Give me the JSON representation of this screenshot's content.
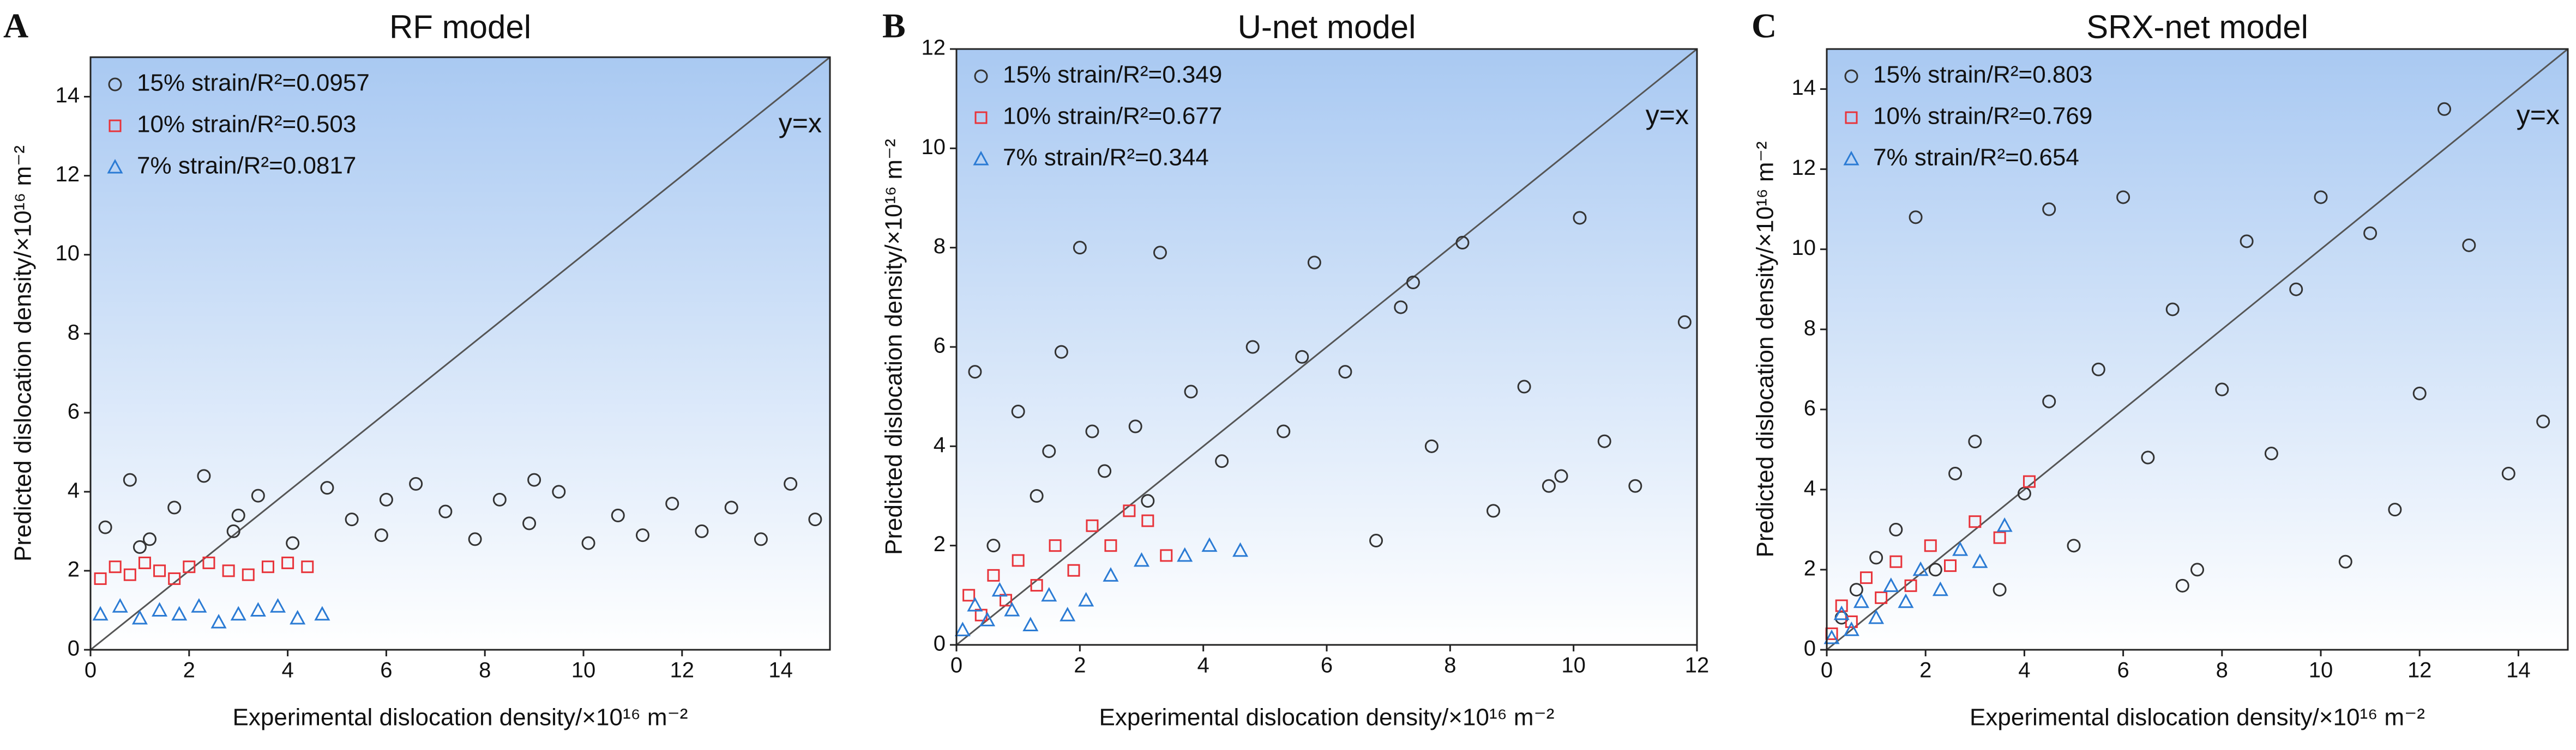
{
  "chart_data": [
    {
      "type": "scatter",
      "panel_label": "A",
      "title": "RF model",
      "x_label": "Experimental dislocation density/×10¹⁶ m⁻²",
      "y_label": "Predicted dislocation density/×10¹⁶ m⁻²",
      "annotation": "y=x",
      "legend": "upper left",
      "xlim": [
        0,
        15
      ],
      "ylim": [
        0,
        15
      ],
      "xticks": [
        0,
        2,
        4,
        6,
        8,
        10,
        12,
        14
      ],
      "yticks": [
        0,
        2,
        4,
        6,
        8,
        10,
        12,
        14
      ],
      "series": [
        {
          "name": "15% strain/R²=0.0957",
          "color": "#333333",
          "marker": "circle",
          "x": [
            0.3,
            0.8,
            1.2,
            1.7,
            2.3,
            2.9,
            3.4,
            4.1,
            4.8,
            5.3,
            5.9,
            6.6,
            7.2,
            7.8,
            8.3,
            8.9,
            9.5,
            10.1,
            10.7,
            11.2,
            11.8,
            12.4,
            13.0,
            13.6,
            14.2,
            14.7,
            1.0,
            3.0,
            6.0,
            9.0
          ],
          "y": [
            3.1,
            4.3,
            2.8,
            3.6,
            4.4,
            3.0,
            3.9,
            2.7,
            4.1,
            3.3,
            2.9,
            4.2,
            3.5,
            2.8,
            3.8,
            3.2,
            4.0,
            2.7,
            3.4,
            2.9,
            3.7,
            3.0,
            3.6,
            2.8,
            4.2,
            3.3,
            2.6,
            3.4,
            3.8,
            4.3
          ]
        },
        {
          "name": "10% strain/R²=0.503",
          "color": "#e8333a",
          "marker": "square",
          "x": [
            0.2,
            0.5,
            0.8,
            1.1,
            1.4,
            1.7,
            2.0,
            2.4,
            2.8,
            3.2,
            3.6,
            4.0,
            4.4
          ],
          "y": [
            1.8,
            2.1,
            1.9,
            2.2,
            2.0,
            1.8,
            2.1,
            2.2,
            2.0,
            1.9,
            2.1,
            2.2,
            2.1
          ]
        },
        {
          "name": "7% strain/R²=0.0817",
          "color": "#2b7bd4",
          "marker": "triangle",
          "x": [
            0.2,
            0.6,
            1.0,
            1.4,
            1.8,
            2.2,
            2.6,
            3.0,
            3.4,
            3.8,
            4.2,
            4.7
          ],
          "y": [
            0.9,
            1.1,
            0.8,
            1.0,
            0.9,
            1.1,
            0.7,
            0.9,
            1.0,
            1.1,
            0.8,
            0.9
          ]
        }
      ]
    },
    {
      "type": "scatter",
      "panel_label": "B",
      "title": "U-net model",
      "x_label": "Experimental dislocation density/×10¹⁶ m⁻²",
      "y_label": "Predicted dislocation density/×10¹⁶ m⁻²",
      "annotation": "y=x",
      "legend": "upper left",
      "xlim": [
        0,
        12
      ],
      "ylim": [
        0,
        12
      ],
      "xticks": [
        0,
        2,
        4,
        6,
        8,
        10,
        12
      ],
      "yticks": [
        0,
        2,
        4,
        6,
        8,
        10,
        12
      ],
      "series": [
        {
          "name": "15% strain/R²=0.349",
          "color": "#333333",
          "marker": "circle",
          "x": [
            0.3,
            0.6,
            1.0,
            1.3,
            1.7,
            2.0,
            2.4,
            2.9,
            3.3,
            3.8,
            4.3,
            4.8,
            5.3,
            5.8,
            6.3,
            6.8,
            7.2,
            7.7,
            8.2,
            8.7,
            9.2,
            9.6,
            10.1,
            10.5,
            11.0,
            11.8,
            1.5,
            3.1,
            5.6,
            7.4,
            9.8,
            2.2
          ],
          "y": [
            5.5,
            2.0,
            4.7,
            3.0,
            5.9,
            8.0,
            3.5,
            4.4,
            7.9,
            5.1,
            3.7,
            6.0,
            4.3,
            7.7,
            5.5,
            2.1,
            6.8,
            4.0,
            8.1,
            2.7,
            5.2,
            3.2,
            8.6,
            4.1,
            3.2,
            6.5,
            3.9,
            2.9,
            5.8,
            7.3,
            3.4,
            4.3
          ]
        },
        {
          "name": "10% strain/R²=0.677",
          "color": "#e8333a",
          "marker": "square",
          "x": [
            0.2,
            0.4,
            0.6,
            0.8,
            1.0,
            1.3,
            1.6,
            1.9,
            2.2,
            2.5,
            2.8,
            3.1,
            3.4
          ],
          "y": [
            1.0,
            0.6,
            1.4,
            0.9,
            1.7,
            1.2,
            2.0,
            1.5,
            2.4,
            2.0,
            2.7,
            2.5,
            1.8
          ]
        },
        {
          "name": "7% strain/R²=0.344",
          "color": "#2b7bd4",
          "marker": "triangle",
          "x": [
            0.1,
            0.3,
            0.5,
            0.7,
            0.9,
            1.2,
            1.5,
            1.8,
            2.1,
            2.5,
            3.0,
            3.7,
            4.1,
            4.6
          ],
          "y": [
            0.3,
            0.8,
            0.5,
            1.1,
            0.7,
            0.4,
            1.0,
            0.6,
            0.9,
            1.4,
            1.7,
            1.8,
            2.0,
            1.9
          ]
        }
      ]
    },
    {
      "type": "scatter",
      "panel_label": "C",
      "title": "SRX-net model",
      "x_label": "Experimental dislocation density/×10¹⁶ m⁻²",
      "y_label": "Predicted dislocation density/×10¹⁶ m⁻²",
      "annotation": "y=x",
      "legend": "upper left",
      "xlim": [
        0,
        15
      ],
      "ylim": [
        0,
        15
      ],
      "xticks": [
        0,
        2,
        4,
        6,
        8,
        10,
        12,
        14
      ],
      "yticks": [
        0,
        2,
        4,
        6,
        8,
        10,
        12,
        14
      ],
      "series": [
        {
          "name": "15% strain/R²=0.803",
          "color": "#333333",
          "marker": "circle",
          "x": [
            0.3,
            0.6,
            1.0,
            1.4,
            1.8,
            2.2,
            2.6,
            3.0,
            3.5,
            4.0,
            4.5,
            5.0,
            5.5,
            6.0,
            6.5,
            7.0,
            7.5,
            8.0,
            8.5,
            9.0,
            9.5,
            10.0,
            10.5,
            11.0,
            11.5,
            12.0,
            12.5,
            13.0,
            13.8,
            14.5,
            4.5,
            7.2
          ],
          "y": [
            0.8,
            1.5,
            2.3,
            3.0,
            10.8,
            2.0,
            4.4,
            5.2,
            1.5,
            3.9,
            6.2,
            2.6,
            7.0,
            11.3,
            4.8,
            8.5,
            2.0,
            6.5,
            10.2,
            4.9,
            9.0,
            11.3,
            2.2,
            10.4,
            3.5,
            6.4,
            13.5,
            10.1,
            4.4,
            5.7,
            11.0,
            1.6
          ]
        },
        {
          "name": "10% strain/R²=0.769",
          "color": "#e8333a",
          "marker": "square",
          "x": [
            0.1,
            0.3,
            0.5,
            0.8,
            1.1,
            1.4,
            1.7,
            2.1,
            2.5,
            3.0,
            3.5,
            4.1
          ],
          "y": [
            0.4,
            1.1,
            0.7,
            1.8,
            1.3,
            2.2,
            1.6,
            2.6,
            2.1,
            3.2,
            2.8,
            4.2
          ]
        },
        {
          "name": "7% strain/R²=0.654",
          "color": "#2b7bd4",
          "marker": "triangle",
          "x": [
            0.1,
            0.3,
            0.5,
            0.7,
            1.0,
            1.3,
            1.6,
            1.9,
            2.3,
            2.7,
            3.1,
            3.6
          ],
          "y": [
            0.3,
            0.9,
            0.5,
            1.2,
            0.8,
            1.6,
            1.2,
            2.0,
            1.5,
            2.5,
            2.2,
            3.1
          ]
        }
      ]
    }
  ]
}
